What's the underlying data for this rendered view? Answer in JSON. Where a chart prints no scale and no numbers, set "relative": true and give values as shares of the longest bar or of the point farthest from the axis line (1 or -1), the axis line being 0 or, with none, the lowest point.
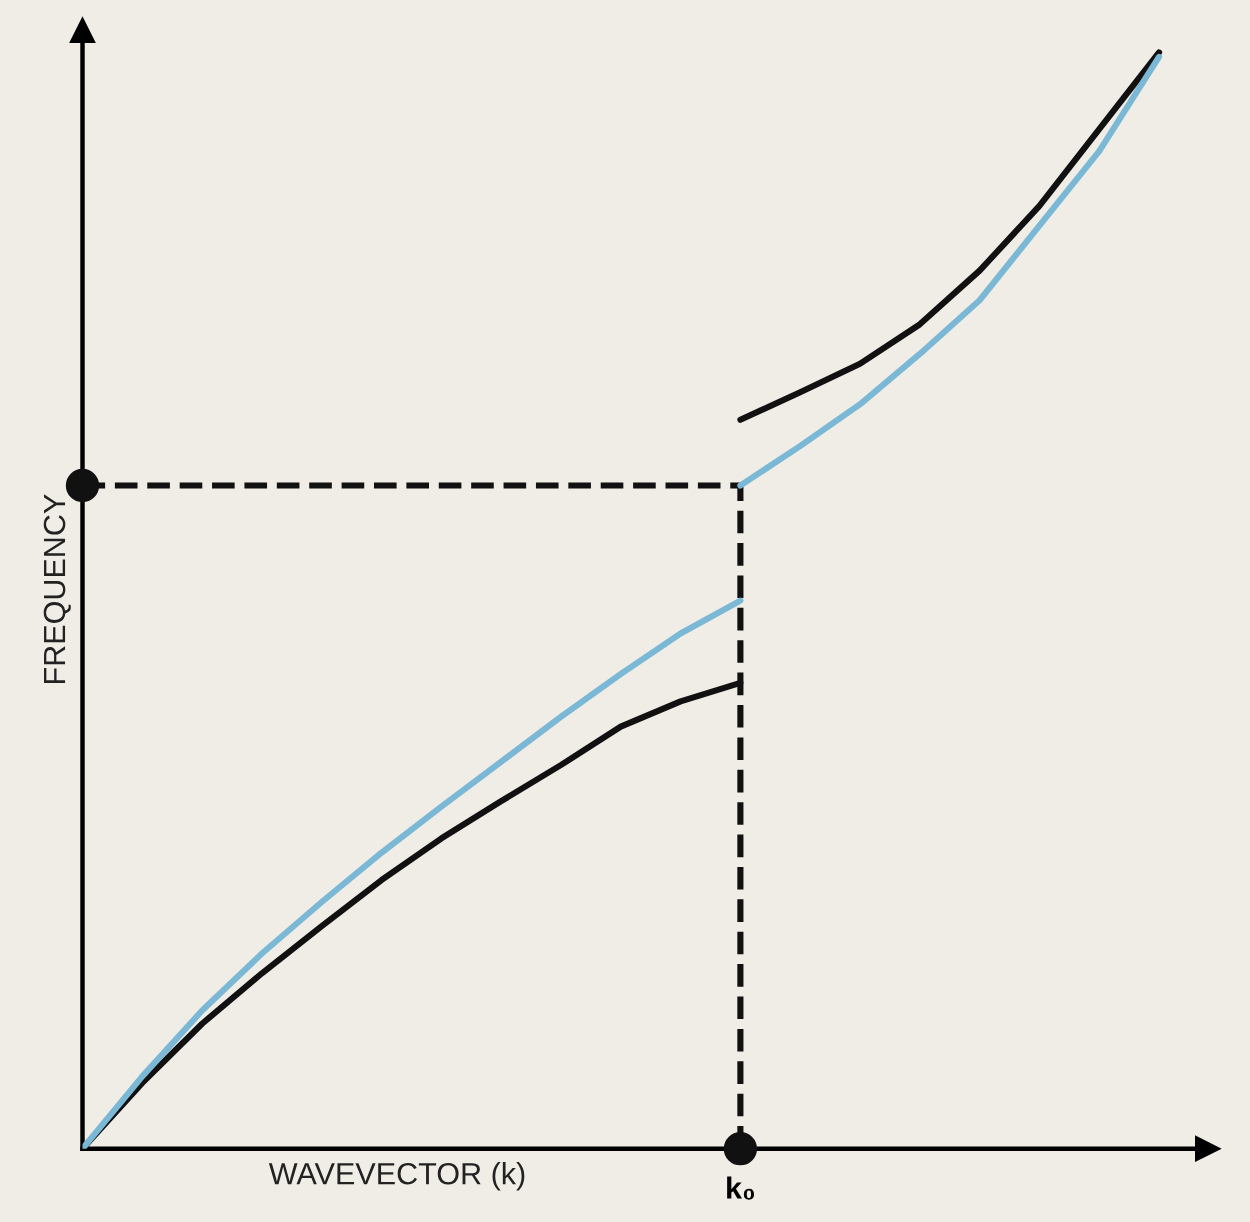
{
  "chart_data": {
    "type": "line",
    "relative": true,
    "xlabel": "WAVEVECTOR (k)",
    "ylabel": "FREQUENCY",
    "categories": [
      null,
      null,
      null,
      null,
      null,
      null,
      null,
      null,
      null,
      null,
      null,
      null,
      null,
      null,
      null,
      null,
      null,
      null,
      null
    ],
    "series": [
      {
        "color": "#111111",
        "values": [
          0,
          0.06,
          0.114,
          0.16,
          0.203,
          0.245,
          0.283,
          0.317,
          0.35,
          0.385,
          0.408,
          0.425,
          null,
          null,
          null,
          null,
          null,
          null,
          null
        ]
      },
      {
        "color": "#7ab8d6",
        "values": [
          0,
          0.066,
          0.126,
          0.178,
          0.225,
          0.27,
          0.312,
          0.353,
          0.394,
          0.433,
          0.47,
          0.5,
          null,
          null,
          null,
          null,
          null,
          null,
          null
        ]
      },
      {
        "color": "#111111",
        "values": [
          null,
          null,
          null,
          null,
          null,
          null,
          null,
          null,
          null,
          null,
          null,
          0.665,
          0.69,
          0.716,
          0.752,
          0.801,
          0.86,
          0.93,
          1.0
        ]
      },
      {
        "color": "#7ab8d6",
        "values": [
          null,
          null,
          null,
          null,
          null,
          null,
          null,
          null,
          null,
          null,
          null,
          0.605,
          0.641,
          0.679,
          0.725,
          0.774,
          0.842,
          0.91,
          0.996
        ]
      }
    ],
    "ref_lines": [
      {
        "axis": "y",
        "value": 0.605,
        "color": "#111111",
        "line_style": "dashed"
      },
      {
        "axis": "x",
        "label": "k₀",
        "color": "#111111",
        "line_style": "dashed"
      }
    ],
    "marker": "none",
    "line_style": "solid"
  }
}
